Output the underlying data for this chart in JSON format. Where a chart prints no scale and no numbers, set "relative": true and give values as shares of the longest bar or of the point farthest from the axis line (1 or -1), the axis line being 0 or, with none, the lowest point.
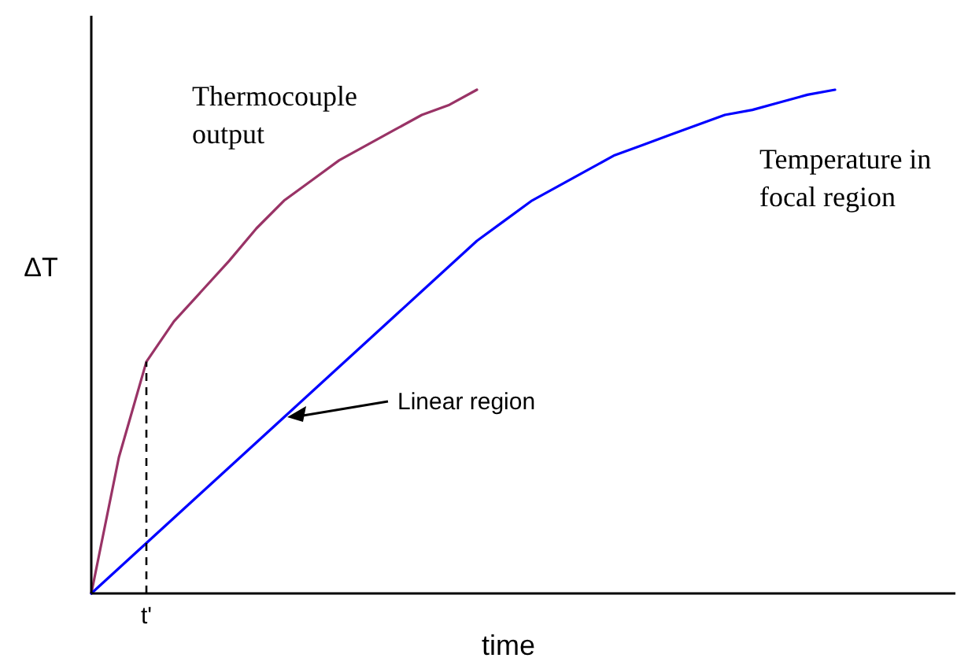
{
  "chart_data": {
    "type": "line",
    "relative": true,
    "xlabel": "time",
    "ylabel": "ΔT",
    "categories": [
      null,
      null,
      null,
      null,
      null,
      null,
      null,
      null,
      null,
      null,
      null,
      null,
      null,
      null,
      null,
      null,
      null,
      null,
      null,
      null,
      null,
      null,
      null,
      null,
      null,
      null,
      null,
      null,
      null,
      null,
      null,
      null
    ],
    "series": [
      {
        "name": "Thermocouple output",
        "color": "#993366",
        "values": [
          0,
          0.27,
          0.46,
          0.54,
          0.6,
          0.66,
          0.725,
          0.78,
          0.82,
          0.86,
          0.89,
          0.92,
          0.95,
          0.97,
          1.0,
          null,
          null,
          null,
          null,
          null,
          null,
          null,
          null,
          null,
          null,
          null,
          null,
          null,
          null,
          null,
          null,
          null
        ]
      },
      {
        "name": "Temperature in focal region",
        "color": "#0000ff",
        "values": [
          0,
          0.05,
          0.1,
          0.15,
          0.2,
          0.25,
          0.3,
          0.35,
          0.4,
          0.45,
          0.5,
          0.55,
          0.6,
          0.65,
          0.7,
          0.74,
          0.78,
          0.81,
          0.84,
          0.87,
          0.89,
          0.91,
          0.93,
          0.95,
          0.96,
          0.975,
          0.99,
          1.0,
          null,
          null,
          null,
          null
        ]
      }
    ],
    "annotations": [
      "t'",
      "Linear region"
    ],
    "legend": false,
    "grid": false,
    "marker": "none",
    "line_style": "solid"
  }
}
